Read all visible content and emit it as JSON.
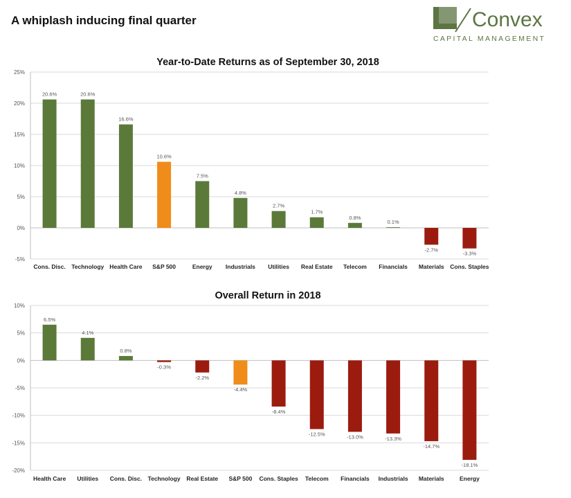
{
  "page": {
    "title": "A whiplash inducing final quarter"
  },
  "logo": {
    "name": "Convex",
    "tagline": "CAPITAL MANAGEMENT"
  },
  "colors": {
    "sector": "#5b7a3a",
    "benchmark": "#f08c1a",
    "negative": "#9b1c0f",
    "grid": "#d9d9d9",
    "axis_text": "#555555",
    "logo_green": "#5d7443"
  },
  "chart_data": [
    {
      "type": "bar",
      "title": "Year-to-Date Returns as of September 30, 2018",
      "categories": [
        "Cons. Disc.",
        "Technology",
        "Health Care",
        "S&P 500",
        "Energy",
        "Industrials",
        "Utilities",
        "Real Estate",
        "Telecom",
        "Financials",
        "Materials",
        "Cons. Staples"
      ],
      "values": [
        20.6,
        20.6,
        16.6,
        10.6,
        7.5,
        4.8,
        2.7,
        1.7,
        0.8,
        0.1,
        -2.7,
        -3.3
      ],
      "data_labels": [
        "20.6%",
        "20.6%",
        "16.6%",
        "10.6%",
        "7.5%",
        "4.8%",
        "2.7%",
        "1.7%",
        "0.8%",
        "0.1%",
        "-2.7%",
        "-3.3%"
      ],
      "bar_colors": [
        "sector",
        "sector",
        "sector",
        "benchmark",
        "sector",
        "sector",
        "sector",
        "sector",
        "sector",
        "sector",
        "negative",
        "negative"
      ],
      "ylim": [
        -5,
        25
      ],
      "yticks": [
        -5,
        0,
        5,
        10,
        15,
        20,
        25
      ],
      "ytick_labels": [
        "-5%",
        "0%",
        "5%",
        "10%",
        "15%",
        "20%",
        "25%"
      ],
      "grid": true,
      "xlabel": "",
      "ylabel": ""
    },
    {
      "type": "bar",
      "title": "Overall Return in 2018",
      "categories": [
        "Health Care",
        "Utilities",
        "Cons. Disc.",
        "Technology",
        "Real Estate",
        "S&P 500",
        "Cons. Staples",
        "Telecom",
        "Financials",
        "Industrials",
        "Materials",
        "Energy"
      ],
      "values": [
        6.5,
        4.1,
        0.8,
        -0.3,
        -2.2,
        -4.4,
        -8.4,
        -12.5,
        -13.0,
        -13.3,
        -14.7,
        -18.1
      ],
      "data_labels": [
        "6.5%",
        "4.1%",
        "0.8%",
        "-0.3%",
        "-2.2%",
        "-4.4%",
        "-8.4%",
        "-12.5%",
        "-13.0%",
        "-13.3%",
        "-14.7%",
        "-18.1%"
      ],
      "bar_colors": [
        "sector",
        "sector",
        "sector",
        "negative",
        "negative",
        "benchmark",
        "negative",
        "negative",
        "negative",
        "negative",
        "negative",
        "negative"
      ],
      "ylim": [
        -20,
        10
      ],
      "yticks": [
        -20,
        -15,
        -10,
        -5,
        0,
        5,
        10
      ],
      "ytick_labels": [
        "-20%",
        "-15%",
        "-10%",
        "-5%",
        "0%",
        "5%",
        "10%"
      ],
      "grid": true,
      "xlabel": "",
      "ylabel": ""
    }
  ]
}
